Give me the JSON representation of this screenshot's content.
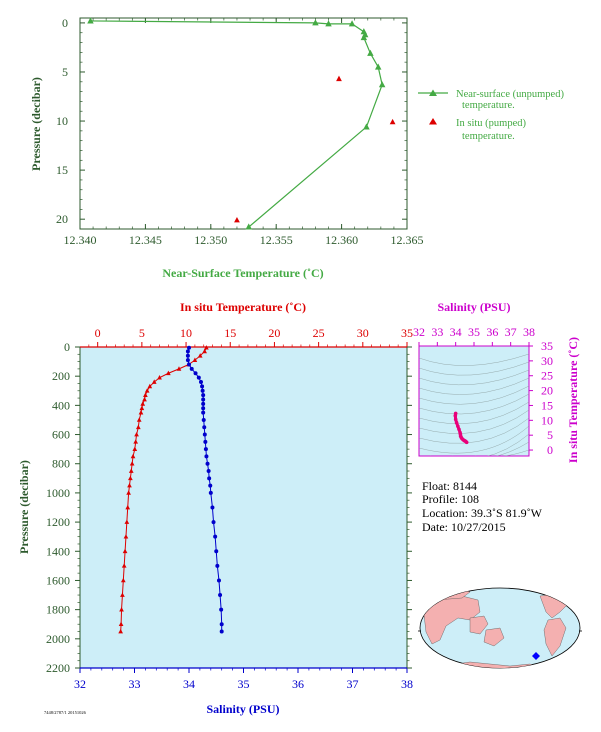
{
  "colors": {
    "axis_green": "#2d5a2d",
    "near_surface": "#44aa44",
    "in_situ_red": "#dd0000",
    "salinity_blue": "#0000cc",
    "magenta": "#cc00cc",
    "ts_trace": "#e8007a",
    "plot_bg": "#cdeef8",
    "land": "#f4b0b0",
    "ocean": "#cdeef8",
    "marker_blue": "#0000ff"
  },
  "chart_data": [
    {
      "type": "scatter",
      "id": "near_surface_panel",
      "xlabel": "Near-Surface Temperature (˚C)",
      "ylabel": "Pressure (decibar)",
      "xlim": [
        12.34,
        12.365
      ],
      "ylim": [
        21,
        -0.5
      ],
      "xticks": [
        12.34,
        12.345,
        12.35,
        12.355,
        12.36,
        12.365
      ],
      "xtick_labels": [
        "12.340",
        "12.345",
        "12.350",
        "12.355",
        "12.360",
        "12.365"
      ],
      "yticks": [
        0,
        5,
        10,
        15,
        20
      ],
      "ytick_labels": [
        "0",
        "5",
        "10",
        "15",
        "20"
      ],
      "series": [
        {
          "name": "Near-surface (unpumped) temperature.",
          "marker": "triangle",
          "connected": true,
          "x": [
            12.3408,
            12.358,
            12.359,
            12.3608,
            12.3617,
            12.3618,
            12.3617,
            12.3622,
            12.3628,
            12.3631,
            12.3619,
            12.3529
          ],
          "y": [
            -0.2,
            0.0,
            0.1,
            0.1,
            0.9,
            1.2,
            1.5,
            3.1,
            4.5,
            6.3,
            10.6,
            20.8
          ]
        },
        {
          "name": "In situ (pumped) temperature.",
          "marker": "triangle",
          "connected": false,
          "x": [
            12.3598,
            12.3639,
            12.352
          ],
          "y": [
            5.7,
            10.1,
            20.1
          ]
        }
      ],
      "legend": [
        "Near-surface (unpumped)",
        "temperature.",
        "In situ (pumped)",
        "temperature."
      ]
    },
    {
      "type": "line",
      "id": "profile_panel",
      "title_top": "In situ Temperature (˚C)",
      "xlabel": "Salinity (PSU)",
      "ylabel": "Pressure (decibar)",
      "temp_lim": [
        -2,
        35
      ],
      "sal_lim": [
        32,
        38
      ],
      "ylim": [
        2200,
        0
      ],
      "temp_ticks": [
        "0",
        "5",
        "10",
        "15",
        "20",
        "25",
        "30",
        "35"
      ],
      "sal_ticks": [
        "32",
        "33",
        "34",
        "35",
        "36",
        "37",
        "38"
      ],
      "pressure_ticks": [
        "0",
        "200",
        "400",
        "600",
        "800",
        "1000",
        "1200",
        "1400",
        "1600",
        "1800",
        "2000",
        "2200"
      ],
      "temperature_profile": {
        "pressure": [
          5,
          30,
          60,
          90,
          120,
          150,
          180,
          210,
          240,
          270,
          300,
          330,
          360,
          390,
          420,
          450,
          500,
          550,
          600,
          650,
          700,
          750,
          800,
          850,
          900,
          950,
          1000,
          1100,
          1200,
          1300,
          1400,
          1500,
          1600,
          1700,
          1800,
          1900,
          1950
        ],
        "temperature": [
          12.3,
          12.1,
          11.6,
          11.0,
          10.3,
          9.2,
          8.0,
          7.0,
          6.4,
          5.9,
          5.6,
          5.4,
          5.3,
          5.1,
          5.0,
          4.9,
          4.7,
          4.6,
          4.4,
          4.3,
          4.2,
          4.0,
          3.9,
          3.8,
          3.7,
          3.6,
          3.5,
          3.4,
          3.3,
          3.2,
          3.1,
          3.0,
          2.9,
          2.8,
          2.7,
          2.65,
          2.6
        ]
      },
      "salinity_profile": {
        "pressure": [
          5,
          30,
          60,
          90,
          120,
          150,
          180,
          210,
          240,
          270,
          300,
          330,
          360,
          390,
          420,
          450,
          500,
          550,
          600,
          650,
          700,
          750,
          800,
          850,
          900,
          950,
          1000,
          1100,
          1200,
          1300,
          1400,
          1500,
          1600,
          1700,
          1800,
          1900,
          1950
        ],
        "salinity": [
          34.0,
          33.98,
          33.98,
          33.98,
          34.0,
          34.05,
          34.12,
          34.18,
          34.22,
          34.24,
          34.25,
          34.26,
          34.26,
          34.26,
          34.26,
          34.26,
          34.27,
          34.28,
          34.29,
          34.3,
          34.31,
          34.32,
          34.34,
          34.36,
          34.37,
          34.39,
          34.4,
          34.43,
          34.45,
          34.48,
          34.5,
          34.52,
          34.55,
          34.57,
          34.59,
          34.6,
          34.6
        ]
      }
    },
    {
      "type": "scatter",
      "id": "ts_panel",
      "title_top": "Salinity (PSU)",
      "ylabel": "In situ Temperature (˚C)",
      "sal_lim": [
        32,
        38
      ],
      "temp_lim": [
        -2,
        35
      ],
      "sal_ticks": [
        "32",
        "33",
        "34",
        "35",
        "36",
        "37",
        "38"
      ],
      "temp_ticks": [
        "0",
        "5",
        "10",
        "15",
        "20",
        "25",
        "30",
        "35"
      ],
      "points": {
        "salinity": [
          34.0,
          33.98,
          34.0,
          34.05,
          34.12,
          34.18,
          34.24,
          34.26,
          34.27,
          34.3,
          34.34,
          34.4,
          34.45,
          34.5,
          34.55,
          34.6
        ],
        "temperature": [
          12.3,
          11.6,
          10.3,
          9.2,
          8.0,
          7.0,
          5.9,
          5.3,
          4.7,
          4.3,
          3.9,
          3.5,
          3.3,
          3.1,
          2.9,
          2.6
        ]
      }
    }
  ],
  "info": {
    "float": "Float:  8144",
    "profile": "Profile:  108",
    "location": "Location:  39.3˚S  81.9˚W",
    "date": "Date:  10/27/2015"
  },
  "footer_code": "7448/2787/1 20151026",
  "map": {
    "float_marker_lon": -81.9,
    "float_marker_lat": -39.3
  }
}
